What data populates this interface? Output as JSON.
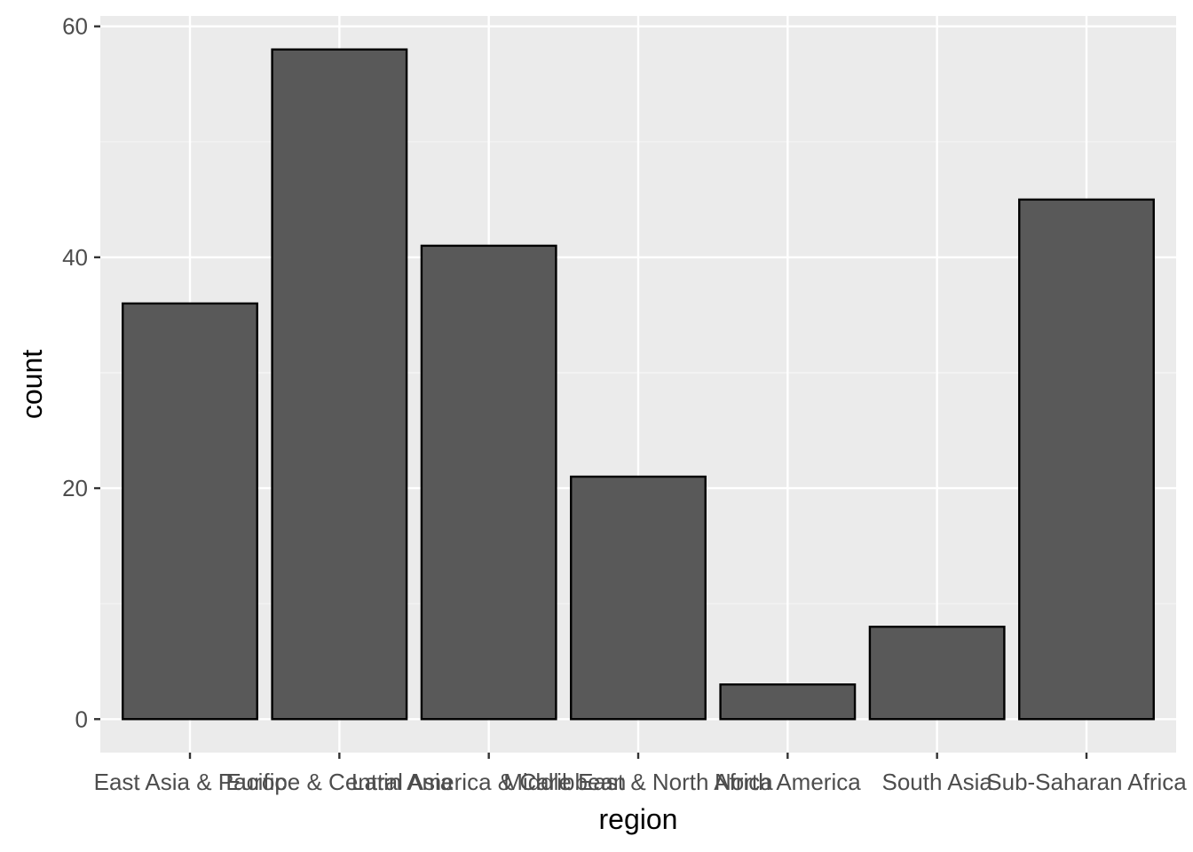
{
  "chart_data": {
    "type": "bar",
    "categories": [
      "East Asia & Pacific",
      "Europe & Central Asia",
      "Latin America & Caribbean",
      "Middle East & North Africa",
      "North America",
      "South Asia",
      "Sub-Saharan Africa"
    ],
    "values": [
      36,
      58,
      41,
      21,
      3,
      8,
      45
    ],
    "xlabel": "region",
    "ylabel": "count",
    "ylim": [
      -2.9,
      60.9
    ],
    "yticks": [
      0,
      20,
      40,
      60
    ],
    "ytick_labels": [
      "0",
      "20",
      "40",
      "60"
    ],
    "grid": true,
    "legend": "none",
    "colors": {
      "panel_background": "#ebebeb",
      "grid_major": "#ffffff",
      "grid_minor": "#f5f5f5",
      "bar_fill": "#595959",
      "bar_outline": "#000000",
      "tick_color": "#333333",
      "tick_label": "#4d4d4d",
      "axis_title": "#000000"
    }
  }
}
